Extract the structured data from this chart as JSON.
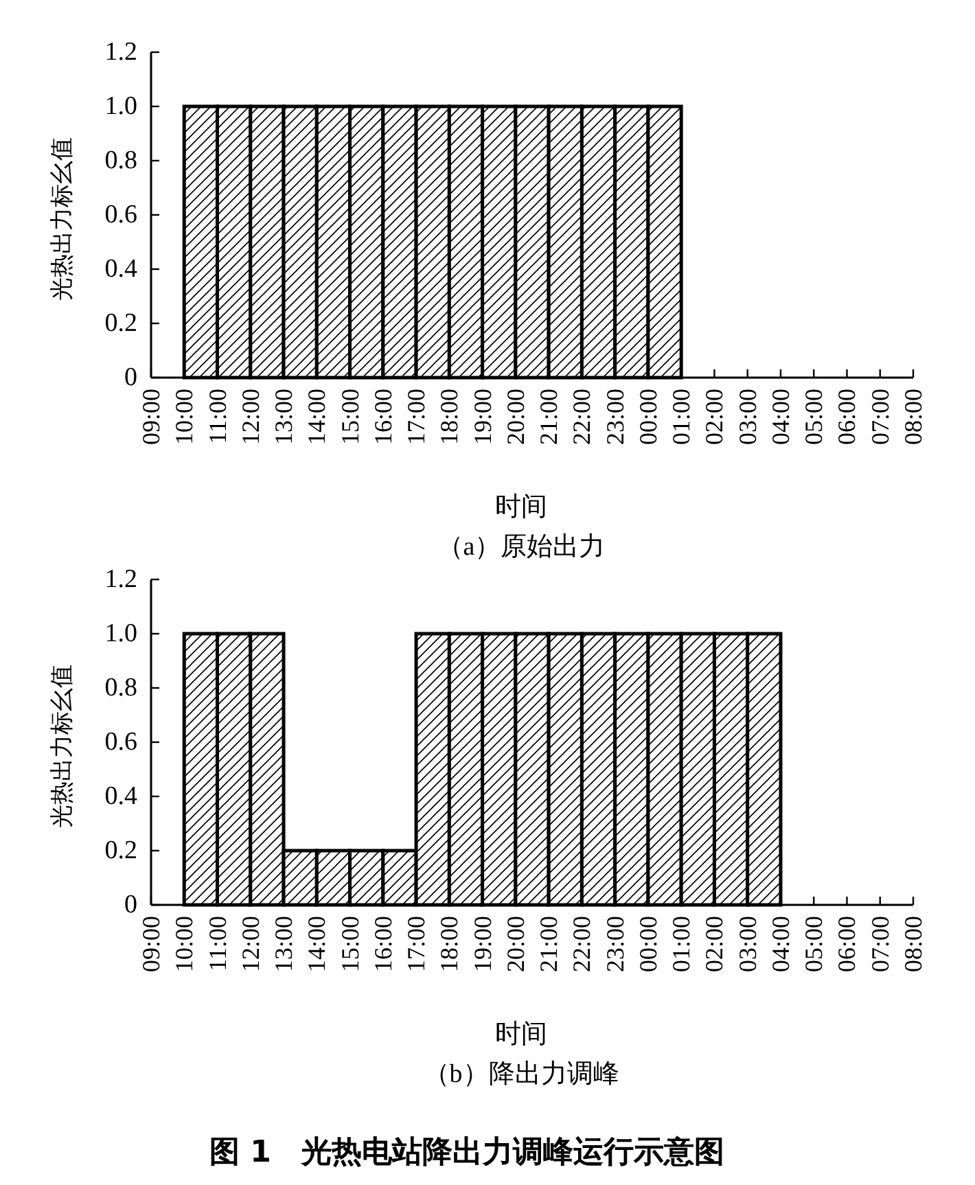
{
  "chart_data": [
    {
      "type": "bar",
      "title": "（a）原始出力",
      "xlabel": "时间",
      "ylabel": "光热出力标幺值",
      "color": "#000000",
      "categories": [
        "09:00",
        "10:00",
        "11:00",
        "12:00",
        "13:00",
        "14:00",
        "15:00",
        "16:00",
        "17:00",
        "18:00",
        "19:00",
        "20:00",
        "21:00",
        "22:00",
        "23:00",
        "00:00",
        "01:00",
        "02:00",
        "03:00",
        "04:00",
        "05:00",
        "06:00",
        "07:00",
        "08:00"
      ],
      "values": [
        0,
        1,
        1,
        1,
        1,
        1,
        1,
        1,
        1,
        1,
        1,
        1,
        1,
        1,
        1,
        1,
        0,
        0,
        0,
        0,
        0,
        0,
        0,
        0
      ],
      "ylim": [
        0,
        1.2
      ],
      "yticks": [
        0,
        0.2,
        0.4,
        0.6,
        0.8,
        {
          "value": 1,
          "label": "1.0"
        },
        1.2
      ]
    },
    {
      "type": "bar",
      "title": "（b）降出力调峰",
      "xlabel": "时间",
      "ylabel": "光热出力标幺值",
      "color": "#000000",
      "categories": [
        "09:00",
        "10:00",
        "11:00",
        "12:00",
        "13:00",
        "14:00",
        "15:00",
        "16:00",
        "17:00",
        "18:00",
        "19:00",
        "20:00",
        "21:00",
        "22:00",
        "23:00",
        "00:00",
        "01:00",
        "02:00",
        "03:00",
        "04:00",
        "05:00",
        "06:00",
        "07:00",
        "08:00"
      ],
      "values": [
        0,
        1,
        1,
        1,
        0.2,
        0.2,
        0.2,
        0.2,
        1,
        1,
        1,
        1,
        1,
        1,
        1,
        1,
        1,
        1,
        1,
        0,
        0,
        0,
        0,
        0
      ],
      "ylim": [
        0,
        1.2
      ],
      "yticks": [
        0,
        0.2,
        0.4,
        0.6,
        0.8,
        {
          "value": 1,
          "label": "1.0"
        },
        1.2
      ],
      "annotations": [
        "图 1　光热电站降出力调峰运行示意图"
      ]
    }
  ]
}
